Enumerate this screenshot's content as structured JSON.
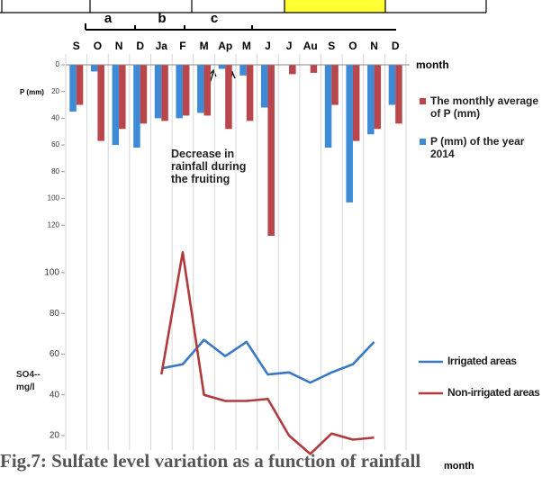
{
  "caption": "Fig.7: Sulfate level variation as a function of rainfall",
  "period_labels": [
    "a",
    "b",
    "c"
  ],
  "chart_data": [
    {
      "type": "bar",
      "inverted": true,
      "categories": [
        "S",
        "O",
        "N",
        "D",
        "Ja",
        "F",
        "M",
        "Ap",
        "M",
        "J",
        "J",
        "Au",
        "S",
        "O",
        "N",
        "D"
      ],
      "x_label": "month",
      "y_label": "P (mm)",
      "ylim": [
        0,
        130
      ],
      "yticks": [
        0,
        20,
        40,
        60,
        80,
        100,
        120
      ],
      "annotation": [
        "Decrease in",
        "rainfall during",
        "the fruiting"
      ],
      "series": [
        {
          "name": "P (mm) of the year 2014",
          "color": "#3d8ad6",
          "values": [
            35,
            5,
            60,
            62,
            40,
            40,
            36,
            3,
            8,
            32,
            0,
            0,
            62,
            103,
            52,
            30
          ]
        },
        {
          "name": "The monthly average of P (mm)",
          "color": "#b8464a",
          "values": [
            30,
            57,
            48,
            44,
            42,
            38,
            38,
            48,
            42,
            128,
            7,
            6,
            30,
            57,
            48,
            44
          ]
        }
      ]
    },
    {
      "type": "line",
      "x_label": "month",
      "y_label": "SO4-- mg/l",
      "ylim": [
        10,
        115
      ],
      "yticks": [
        20,
        40,
        60,
        80,
        100
      ],
      "series": [
        {
          "name": "Irrigated areas",
          "color": "#3b78c4",
          "values": [
            null,
            null,
            null,
            null,
            53,
            55,
            67,
            59,
            66,
            50,
            51,
            46,
            51,
            55,
            66,
            null
          ]
        },
        {
          "name": "Non-irrigated areas",
          "color": "#b03a3c",
          "values": [
            null,
            null,
            null,
            null,
            50,
            110,
            40,
            37,
            37,
            38,
            20,
            11,
            21,
            18,
            19,
            null
          ]
        }
      ]
    }
  ]
}
